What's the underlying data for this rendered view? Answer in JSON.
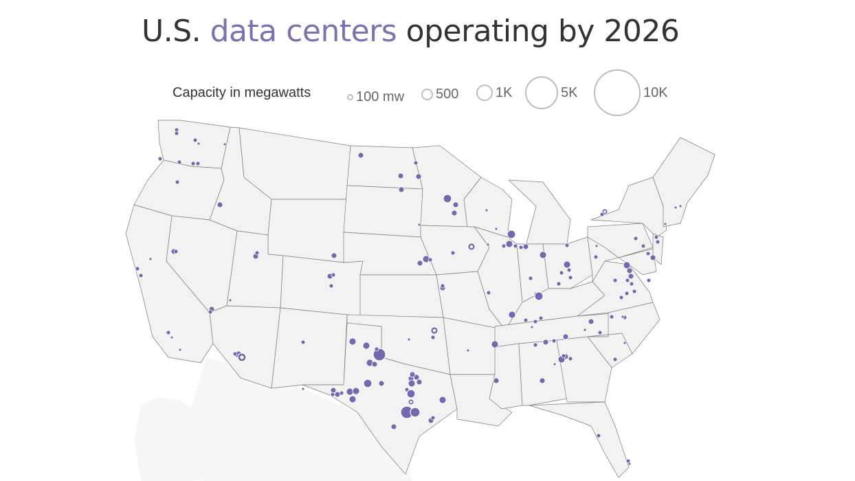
{
  "title": {
    "prefix": "U.S. ",
    "highlight": "data centers",
    "suffix": " operating by 2026"
  },
  "legend": {
    "label": "Capacity in megawatts",
    "items": [
      "100 mw",
      "500",
      "1K",
      "5K",
      "10K"
    ]
  },
  "colors": {
    "dot": "#6a62a8",
    "dot_outline": "#ffffff",
    "land": "#f2f2f2",
    "border": "#7a7a7a",
    "legend_circle": "#bdbdbd",
    "title_highlight": "#7b72b0"
  }
}
